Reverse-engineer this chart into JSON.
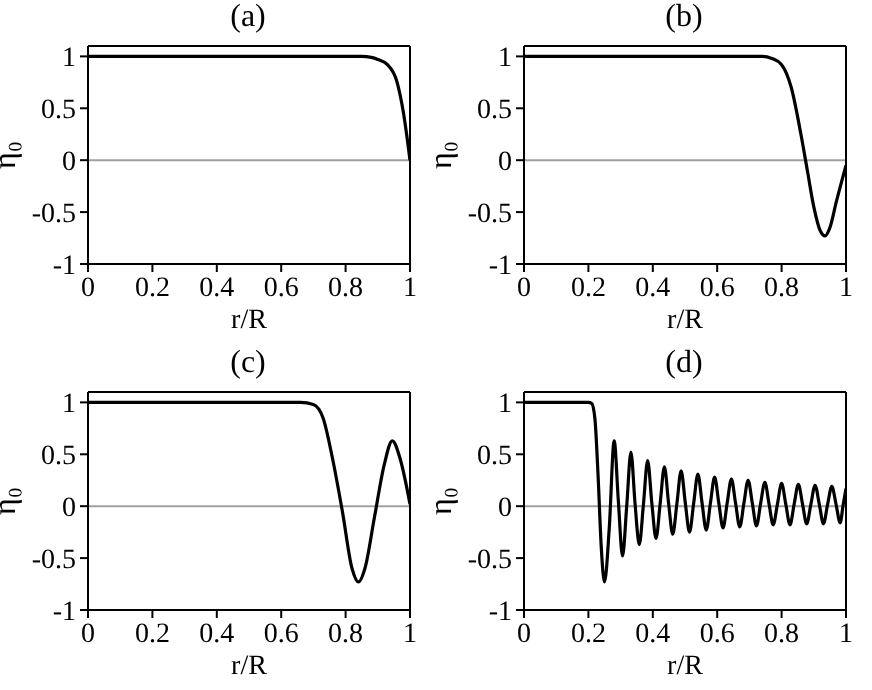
{
  "chart_data": [
    {
      "type": "line",
      "title": "(a)",
      "xlabel": "r/R",
      "ylabel": "η₀",
      "xlim": [
        0,
        1
      ],
      "ylim": [
        -1,
        1.1
      ],
      "xticks": [
        0,
        0.2,
        0.4,
        0.6,
        0.8,
        1
      ],
      "yticks": [
        -1,
        -0.5,
        0,
        0.5,
        1
      ],
      "grid": false,
      "legend": false,
      "marker": "none",
      "line_style": "solid",
      "ref_lines": [
        {
          "axis": "y",
          "value": 0,
          "color": "#a0a0a0"
        }
      ],
      "series": [
        {
          "color": "#000000",
          "x": [
            0,
            0.5,
            0.85,
            0.88,
            0.9,
            0.93,
            0.96,
            0.98,
            1.0
          ],
          "values": [
            1,
            1,
            1,
            0.99,
            0.97,
            0.92,
            0.75,
            0.45,
            0
          ]
        }
      ]
    },
    {
      "type": "line",
      "title": "(b)",
      "xlabel": "r/R",
      "ylabel": "η₀",
      "xlim": [
        0,
        1
      ],
      "ylim": [
        -1,
        1.1
      ],
      "xticks": [
        0,
        0.2,
        0.4,
        0.6,
        0.8,
        1
      ],
      "yticks": [
        -1,
        -0.5,
        0,
        0.5,
        1
      ],
      "grid": false,
      "legend": false,
      "marker": "none",
      "line_style": "solid",
      "ref_lines": [
        {
          "axis": "y",
          "value": 0,
          "color": "#a0a0a0"
        }
      ],
      "series": [
        {
          "color": "#000000",
          "x": [
            0,
            0.5,
            0.74,
            0.77,
            0.8,
            0.83,
            0.86,
            0.88,
            0.9,
            0.92,
            0.935,
            0.95,
            0.97,
            1.0
          ],
          "values": [
            1,
            1,
            1,
            0.98,
            0.92,
            0.7,
            0.25,
            -0.1,
            -0.45,
            -0.68,
            -0.73,
            -0.65,
            -0.4,
            -0.05
          ]
        }
      ]
    },
    {
      "type": "line",
      "title": "(c)",
      "xlabel": "r/R",
      "ylabel": "η₀",
      "xlim": [
        0,
        1
      ],
      "ylim": [
        -1,
        1.1
      ],
      "xticks": [
        0,
        0.2,
        0.4,
        0.6,
        0.8,
        1
      ],
      "yticks": [
        -1,
        -0.5,
        0,
        0.5,
        1
      ],
      "grid": false,
      "legend": false,
      "marker": "none",
      "line_style": "solid",
      "ref_lines": [
        {
          "axis": "y",
          "value": 0,
          "color": "#a0a0a0"
        }
      ],
      "series": [
        {
          "color": "#000000",
          "x": [
            0,
            0.4,
            0.66,
            0.7,
            0.73,
            0.76,
            0.79,
            0.82,
            0.84,
            0.86,
            0.89,
            0.92,
            0.945,
            0.97,
            1.0
          ],
          "values": [
            1,
            1,
            1,
            0.98,
            0.85,
            0.45,
            -0.05,
            -0.6,
            -0.73,
            -0.6,
            -0.1,
            0.4,
            0.63,
            0.45,
            0.02
          ]
        }
      ]
    },
    {
      "type": "line",
      "title": "(d)",
      "xlabel": "r/R",
      "ylabel": "η₀",
      "xlim": [
        0,
        1
      ],
      "ylim": [
        -1,
        1.1
      ],
      "xticks": [
        0,
        0.2,
        0.4,
        0.6,
        0.8,
        1
      ],
      "yticks": [
        -1,
        -0.5,
        0,
        0.5,
        1
      ],
      "grid": false,
      "legend": false,
      "marker": "none",
      "line_style": "solid",
      "ref_lines": [
        {
          "axis": "y",
          "value": 0,
          "color": "#a0a0a0"
        }
      ],
      "series": [
        {
          "color": "#000000",
          "x": [
            0,
            0.1,
            0.2,
            0.21,
            0.22,
            0.23,
            0.24,
            0.25,
            0.265,
            0.28,
            0.293,
            0.306,
            0.319,
            0.332,
            0.345,
            0.358,
            0.371,
            0.384,
            0.397,
            0.41,
            0.423,
            0.436,
            0.449,
            0.462,
            0.475,
            0.488,
            0.501,
            0.514,
            0.527,
            0.54,
            0.553,
            0.566,
            0.579,
            0.592,
            0.605,
            0.618,
            0.631,
            0.644,
            0.657,
            0.67,
            0.683,
            0.696,
            0.709,
            0.722,
            0.735,
            0.748,
            0.761,
            0.774,
            0.787,
            0.8,
            0.813,
            0.826,
            0.839,
            0.852,
            0.865,
            0.878,
            0.891,
            0.904,
            0.917,
            0.93,
            0.943,
            0.956,
            0.969,
            0.982,
            0.991,
            1.0
          ],
          "values": [
            1,
            1,
            1,
            0.99,
            0.85,
            0.3,
            -0.4,
            -0.73,
            -0.2,
            0.63,
            0.05,
            -0.48,
            0,
            0.52,
            0.02,
            -0.37,
            0.02,
            0.44,
            0.03,
            -0.31,
            0.03,
            0.38,
            0.03,
            -0.27,
            0.03,
            0.34,
            0.03,
            -0.25,
            0.03,
            0.31,
            0.03,
            -0.23,
            0.03,
            0.28,
            0.03,
            -0.21,
            0.03,
            0.26,
            0.03,
            -0.2,
            0.03,
            0.25,
            0.03,
            -0.19,
            0.03,
            0.23,
            0.02,
            -0.18,
            0.02,
            0.22,
            0.02,
            -0.18,
            0.02,
            0.21,
            0.02,
            -0.17,
            0.02,
            0.2,
            0.02,
            -0.17,
            0.02,
            0.19,
            0.02,
            -0.16,
            0.01,
            0.17
          ]
        }
      ]
    }
  ]
}
